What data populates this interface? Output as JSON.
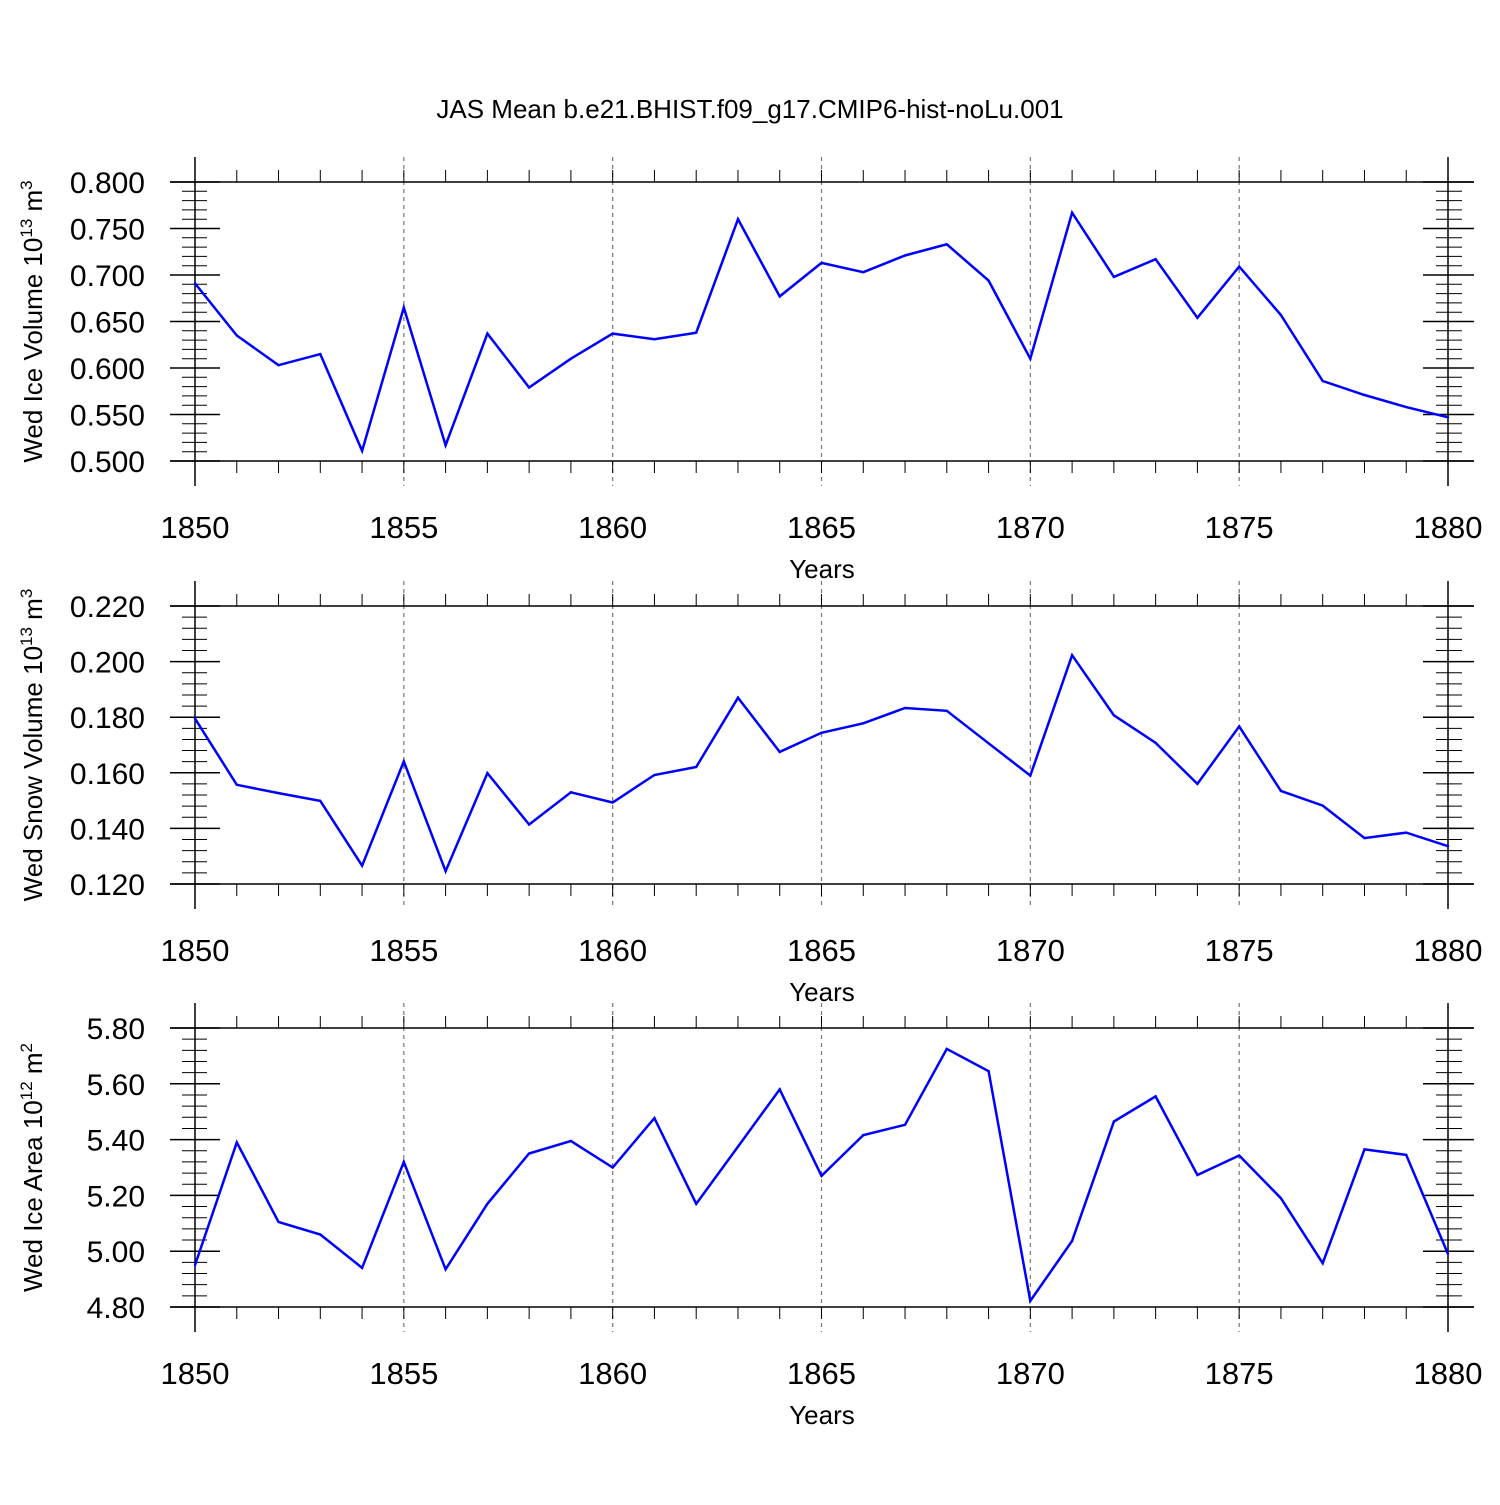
{
  "title": "JAS Mean b.e21.BHIST.f09_g17.CMIP6-hist-noLu.001",
  "colors": {
    "line": "#0000ff",
    "axis": "#000000",
    "grid": "#777777"
  },
  "chart_data": [
    {
      "type": "line",
      "xlabel": "Years",
      "ylabel": "Wed Ice Volume 10",
      "ylabel_exp": "13",
      "ylabel_unit": " m",
      "ylabel_unit_exp": "3",
      "xlim": [
        1850,
        1880
      ],
      "ylim": [
        0.5,
        0.8
      ],
      "xticks": [
        1850,
        1855,
        1860,
        1865,
        1870,
        1875,
        1880
      ],
      "xtick_labels": [
        "1850",
        "1855",
        "1860",
        "1865",
        "1870",
        "1875",
        "1880"
      ],
      "yticks": [
        0.5,
        0.55,
        0.6,
        0.65,
        0.7,
        0.75,
        0.8
      ],
      "ytick_labels": [
        "0.500",
        "0.550",
        "0.600",
        "0.650",
        "0.700",
        "0.750",
        "0.800"
      ],
      "yminor_step": 0.01,
      "grid": "vertical-dashed",
      "x": [
        1850,
        1851,
        1852,
        1853,
        1854,
        1855,
        1856,
        1857,
        1858,
        1859,
        1860,
        1861,
        1862,
        1863,
        1864,
        1865,
        1866,
        1867,
        1868,
        1869,
        1870,
        1871,
        1872,
        1873,
        1874,
        1875,
        1876,
        1877,
        1878,
        1879,
        1880
      ],
      "y": [
        0.691,
        0.635,
        0.603,
        0.615,
        0.511,
        0.665,
        0.517,
        0.637,
        0.579,
        0.61,
        0.637,
        0.631,
        0.638,
        0.76,
        0.677,
        0.713,
        0.703,
        0.721,
        0.733,
        0.694,
        0.61,
        0.767,
        0.698,
        0.717,
        0.654,
        0.709,
        0.657,
        0.586,
        0.571,
        0.558,
        0.547
      ]
    },
    {
      "type": "line",
      "xlabel": "Years",
      "ylabel": "Wed Snow Volume 10",
      "ylabel_exp": "13",
      "ylabel_unit": " m",
      "ylabel_unit_exp": "3",
      "xlim": [
        1850,
        1880
      ],
      "ylim": [
        0.12,
        0.22
      ],
      "xticks": [
        1850,
        1855,
        1860,
        1865,
        1870,
        1875,
        1880
      ],
      "xtick_labels": [
        "1850",
        "1855",
        "1860",
        "1865",
        "1870",
        "1875",
        "1880"
      ],
      "yticks": [
        0.12,
        0.14,
        0.16,
        0.18,
        0.2,
        0.22
      ],
      "ytick_labels": [
        "0.120",
        "0.140",
        "0.160",
        "0.180",
        "0.200",
        "0.220"
      ],
      "yminor_step": 0.004,
      "grid": "vertical-dashed",
      "x": [
        1850,
        1851,
        1852,
        1853,
        1854,
        1855,
        1856,
        1857,
        1858,
        1859,
        1860,
        1861,
        1862,
        1863,
        1864,
        1865,
        1866,
        1867,
        1868,
        1869,
        1870,
        1871,
        1872,
        1873,
        1874,
        1875,
        1876,
        1877,
        1878,
        1879,
        1880
      ],
      "y": [
        0.1795,
        0.1557,
        0.1527,
        0.1499,
        0.1266,
        0.1641,
        0.1246,
        0.1599,
        0.1414,
        0.153,
        0.1493,
        0.1592,
        0.1621,
        0.187,
        0.1675,
        0.1744,
        0.1778,
        0.1833,
        0.1823,
        0.1706,
        0.159,
        0.2023,
        0.1807,
        0.1708,
        0.156,
        0.1767,
        0.1535,
        0.1482,
        0.1365,
        0.1385,
        0.1336
      ]
    },
    {
      "type": "line",
      "xlabel": "Years",
      "ylabel": "Wed Ice Area 10",
      "ylabel_exp": "12",
      "ylabel_unit": " m",
      "ylabel_unit_exp": "2",
      "xlim": [
        1850,
        1880
      ],
      "ylim": [
        4.8,
        5.8
      ],
      "xticks": [
        1850,
        1855,
        1860,
        1865,
        1870,
        1875,
        1880
      ],
      "xtick_labels": [
        "1850",
        "1855",
        "1860",
        "1865",
        "1870",
        "1875",
        "1880"
      ],
      "yticks": [
        4.8,
        5.0,
        5.2,
        5.4,
        5.6,
        5.8
      ],
      "ytick_labels": [
        "4.80",
        "5.00",
        "5.20",
        "5.40",
        "5.60",
        "5.80"
      ],
      "yminor_step": 0.04,
      "grid": "vertical-dashed",
      "x": [
        1850,
        1851,
        1852,
        1853,
        1854,
        1855,
        1856,
        1857,
        1858,
        1859,
        1860,
        1861,
        1862,
        1863,
        1864,
        1865,
        1866,
        1867,
        1868,
        1869,
        1870,
        1871,
        1872,
        1873,
        1874,
        1875,
        1876,
        1877,
        1878,
        1879,
        1880
      ],
      "y": [
        4.95,
        5.39,
        5.105,
        5.06,
        4.94,
        5.32,
        4.935,
        5.17,
        5.35,
        5.395,
        5.3,
        5.477,
        5.17,
        5.375,
        5.58,
        5.27,
        5.416,
        5.453,
        5.725,
        5.645,
        4.822,
        5.037,
        5.465,
        5.555,
        5.273,
        5.343,
        5.19,
        4.957,
        5.365,
        5.345,
        4.99
      ]
    }
  ]
}
